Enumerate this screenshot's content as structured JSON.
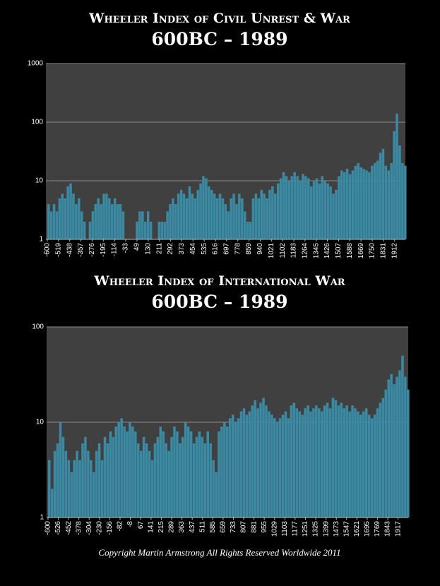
{
  "chart_data": [
    {
      "type": "bar",
      "title": "Wheeler Index of Civil Unrest & War",
      "subtitle": "600BC – 1989",
      "log_scale": true,
      "grid": true,
      "color": "#3b8aa3",
      "x": [
        -600,
        -580,
        -560,
        -540,
        -520,
        -500,
        -480,
        -460,
        -440,
        -420,
        -400,
        -380,
        -360,
        -340,
        -320,
        -300,
        -280,
        -260,
        -240,
        -220,
        -200,
        -180,
        -160,
        -140,
        -120,
        -100,
        -80,
        -60,
        -40,
        -20,
        0,
        20,
        40,
        60,
        80,
        100,
        120,
        140,
        160,
        180,
        200,
        220,
        240,
        260,
        280,
        300,
        320,
        340,
        360,
        380,
        400,
        420,
        440,
        460,
        480,
        500,
        520,
        540,
        560,
        580,
        600,
        620,
        640,
        660,
        680,
        700,
        720,
        740,
        760,
        780,
        800,
        820,
        840,
        860,
        880,
        900,
        920,
        940,
        960,
        980,
        1000,
        1020,
        1040,
        1060,
        1080,
        1100,
        1120,
        1140,
        1160,
        1180,
        1200,
        1220,
        1240,
        1260,
        1280,
        1300,
        1320,
        1340,
        1360,
        1380,
        1400,
        1420,
        1440,
        1460,
        1480,
        1500,
        1520,
        1540,
        1560,
        1580,
        1600,
        1620,
        1640,
        1660,
        1680,
        1700,
        1720,
        1740,
        1760,
        1780,
        1800,
        1820,
        1840,
        1860,
        1880,
        1900,
        1920,
        1940,
        1960,
        1980
      ],
      "values": [
        4,
        3,
        4,
        3,
        5,
        6,
        5,
        8,
        9,
        6,
        4,
        5,
        3,
        2,
        1,
        2,
        3,
        4,
        5,
        4,
        6,
        6,
        5,
        4,
        5,
        4,
        4,
        3,
        1,
        1,
        1,
        1,
        2,
        3,
        3,
        2,
        3,
        2,
        1,
        1,
        2,
        2,
        2,
        3,
        4,
        5,
        4,
        6,
        7,
        6,
        5,
        8,
        6,
        5,
        7,
        9,
        12,
        11,
        8,
        7,
        6,
        5,
        6,
        5,
        4,
        3,
        5,
        6,
        4,
        6,
        5,
        3,
        2,
        2,
        5,
        6,
        5,
        7,
        6,
        5,
        7,
        8,
        6,
        9,
        11,
        14,
        12,
        10,
        12,
        14,
        12,
        10,
        13,
        12,
        11,
        8,
        10,
        11,
        9,
        12,
        10,
        9,
        8,
        6,
        7,
        12,
        15,
        14,
        16,
        13,
        15,
        18,
        20,
        17,
        16,
        15,
        14,
        18,
        20,
        22,
        30,
        35,
        18,
        15,
        20,
        70,
        140,
        40,
        20,
        18
      ],
      "xlim": [
        -610,
        1990
      ],
      "xticks": [
        -600,
        -519,
        -438,
        -357,
        -276,
        -195,
        -114,
        -33,
        49,
        130,
        211,
        292,
        373,
        454,
        535,
        616,
        697,
        778,
        859,
        940,
        1021,
        1102,
        1183,
        1264,
        1345,
        1426,
        1507,
        1588,
        1669,
        1750,
        1831,
        1912
      ],
      "ylim": [
        1,
        1000
      ],
      "yticks": [
        1,
        10,
        100,
        1000
      ]
    },
    {
      "type": "bar",
      "title": "Wheeler Index of International War",
      "subtitle": "600BC – 1989",
      "log_scale": true,
      "grid": true,
      "color": "#3b8aa3",
      "x": [
        -600,
        -580,
        -560,
        -540,
        -520,
        -500,
        -480,
        -460,
        -440,
        -420,
        -400,
        -380,
        -360,
        -340,
        -320,
        -300,
        -280,
        -260,
        -240,
        -220,
        -200,
        -180,
        -160,
        -140,
        -120,
        -100,
        -80,
        -60,
        -40,
        -20,
        0,
        20,
        40,
        60,
        80,
        100,
        120,
        140,
        160,
        180,
        200,
        220,
        240,
        260,
        280,
        300,
        320,
        340,
        360,
        380,
        400,
        420,
        440,
        460,
        480,
        500,
        520,
        540,
        560,
        580,
        600,
        620,
        640,
        660,
        680,
        700,
        720,
        740,
        760,
        780,
        800,
        820,
        840,
        860,
        880,
        900,
        920,
        940,
        960,
        980,
        1000,
        1020,
        1040,
        1060,
        1080,
        1100,
        1120,
        1140,
        1160,
        1180,
        1200,
        1220,
        1240,
        1260,
        1280,
        1300,
        1320,
        1340,
        1360,
        1380,
        1400,
        1420,
        1440,
        1460,
        1480,
        1500,
        1520,
        1540,
        1560,
        1580,
        1600,
        1620,
        1640,
        1660,
        1680,
        1700,
        1720,
        1740,
        1760,
        1780,
        1800,
        1820,
        1840,
        1860,
        1880,
        1900,
        1920,
        1940,
        1960,
        1980
      ],
      "values": [
        4,
        2,
        5,
        6,
        10,
        7,
        5,
        4,
        3,
        4,
        5,
        4,
        6,
        7,
        5,
        4,
        3,
        5,
        6,
        4,
        7,
        6,
        8,
        7,
        9,
        10,
        11,
        9,
        8,
        10,
        9,
        8,
        6,
        5,
        7,
        6,
        5,
        4,
        6,
        7,
        9,
        8,
        6,
        5,
        7,
        9,
        8,
        6,
        7,
        10,
        9,
        8,
        6,
        7,
        8,
        7,
        6,
        8,
        6,
        4,
        3,
        8,
        9,
        10,
        9,
        11,
        12,
        10,
        11,
        13,
        14,
        12,
        13,
        15,
        17,
        14,
        16,
        18,
        15,
        13,
        12,
        11,
        10,
        11,
        12,
        13,
        11,
        15,
        16,
        14,
        13,
        12,
        14,
        15,
        13,
        14,
        15,
        14,
        13,
        15,
        16,
        14,
        18,
        17,
        15,
        16,
        14,
        15,
        13,
        15,
        14,
        13,
        12,
        13,
        14,
        12,
        11,
        12,
        14,
        16,
        18,
        22,
        28,
        32,
        25,
        30,
        35,
        50,
        30,
        22
      ],
      "xlim": [
        -610,
        1990
      ],
      "xticks": [
        -600,
        -526,
        -452,
        -378,
        -304,
        -230,
        -156,
        -82,
        -8,
        67,
        141,
        215,
        289,
        363,
        437,
        511,
        585,
        659,
        733,
        807,
        881,
        955,
        1029,
        1103,
        1177,
        1251,
        1325,
        1399,
        1473,
        1547,
        1621,
        1695,
        1769,
        1843,
        1917
      ],
      "ylim": [
        1,
        100
      ],
      "yticks": [
        1,
        10,
        100
      ]
    }
  ],
  "footer": "Copyright Martin Armstrong All Rights Reserved Worldwide 2011"
}
